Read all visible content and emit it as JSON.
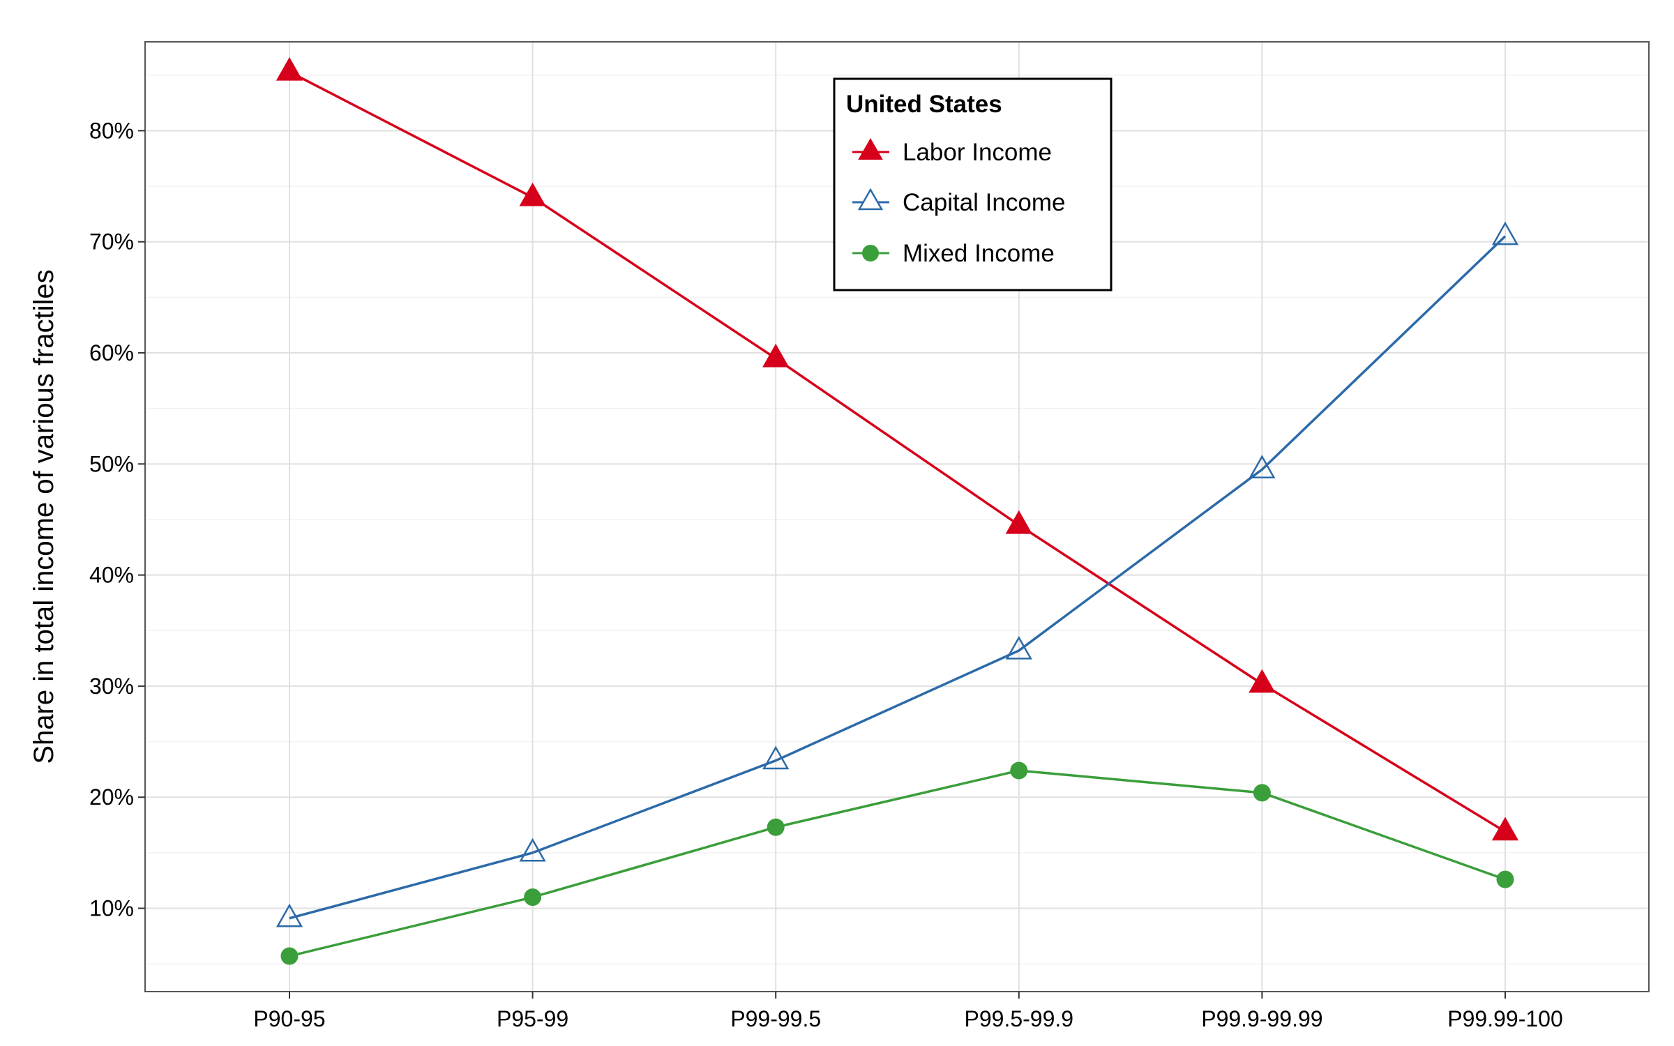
{
  "chart_data": {
    "type": "line",
    "title": "",
    "xlabel": "",
    "ylabel": "Share in total income of various fractiles",
    "categories": [
      "P90-95",
      "P95-99",
      "P99-99.5",
      "P99.5-99.9",
      "P99.9-99.99",
      "P99.99-100"
    ],
    "ylim": [
      2.5,
      88
    ],
    "yticks": [
      10,
      20,
      30,
      40,
      50,
      60,
      70,
      80
    ],
    "ytick_labels": [
      "10%",
      "20%",
      "30%",
      "40%",
      "50%",
      "60%",
      "70%",
      "80%"
    ],
    "grid": true,
    "legend": {
      "title": "United States",
      "position": "top-center"
    },
    "series": [
      {
        "name": "Labor Income",
        "color": "#d7001a",
        "marker": "filled-triangle",
        "values": [
          85.3,
          74.0,
          59.5,
          44.5,
          30.2,
          16.9
        ]
      },
      {
        "name": "Capital Income",
        "color": "#2c6aa8",
        "marker": "open-triangle",
        "values": [
          9.1,
          15.0,
          23.3,
          33.2,
          49.5,
          70.5
        ]
      },
      {
        "name": "Mixed Income",
        "color": "#3a9e3a",
        "marker": "filled-circle",
        "values": [
          5.7,
          11.0,
          17.3,
          22.4,
          20.4,
          12.6
        ]
      }
    ]
  }
}
